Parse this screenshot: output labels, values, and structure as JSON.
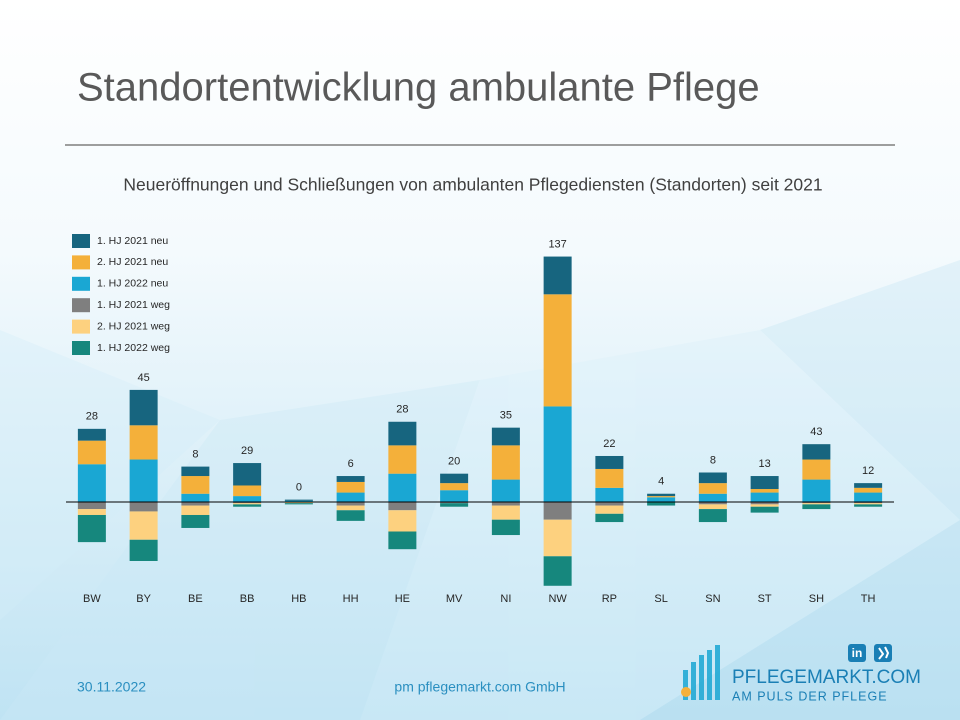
{
  "chart_data": {
    "type": "bar",
    "stacked": true,
    "title": "Standortentwicklung ambulante Pflege",
    "subtitle": "Neueröffnungen  und  Schließungen  von  ambulanten  Pflegediensten  (Standorten)  seit 2021",
    "categories": [
      "BW",
      "BY",
      "BE",
      "BB",
      "HB",
      "HH",
      "HE",
      "MV",
      "NI",
      "NW",
      "RP",
      "SL",
      "SN",
      "ST",
      "SH",
      "TH"
    ],
    "series": [
      {
        "name": "1. HJ 2021 neu",
        "color": "#17657f",
        "values": [
          10,
          30,
          8,
          19,
          1,
          5,
          20,
          8,
          15,
          32,
          11,
          2,
          9,
          11,
          13,
          4
        ]
      },
      {
        "name": "2. HJ 2021 neu",
        "color": "#f4b03a",
        "values": [
          20,
          29,
          15,
          9,
          0,
          9,
          24,
          6,
          29,
          95,
          16,
          1,
          9,
          3,
          17,
          4
        ]
      },
      {
        "name": "1. HJ 2022 neu",
        "color": "#1aa7d3",
        "values": [
          32,
          36,
          7,
          5,
          1,
          8,
          24,
          10,
          19,
          81,
          12,
          4,
          7,
          8,
          19,
          8
        ]
      },
      {
        "name": "1. HJ 2021 weg",
        "color": "#7f7f7f",
        "values": [
          -6,
          -8,
          -3,
          -1,
          0,
          -3,
          -7,
          -1,
          -3,
          -15,
          -3,
          0,
          -2,
          -2,
          -1,
          -1
        ]
      },
      {
        "name": "2. HJ 2021 weg",
        "color": "#fdd17f",
        "values": [
          -5,
          -24,
          -8,
          -1,
          -1,
          -4,
          -18,
          0,
          -12,
          -31,
          -7,
          0,
          -4,
          -2,
          -1,
          -1
        ]
      },
      {
        "name": "1. HJ 2022 weg",
        "color": "#16877d",
        "values": [
          -23,
          -18,
          -11,
          -2,
          -1,
          -9,
          -15,
          -3,
          -13,
          -25,
          -7,
          -3,
          -11,
          -5,
          -4,
          -2
        ]
      }
    ],
    "totals": [
      28,
      45,
      8,
      29,
      0,
      6,
      28,
      20,
      35,
      137,
      22,
      4,
      8,
      13,
      43,
      12
    ],
    "ylim": [
      -75,
      215
    ],
    "legend": "top-left"
  },
  "footer": {
    "date": "30.11.2022",
    "company": "pm pflegemarkt.com GmbH"
  },
  "logo": {
    "name": "PFLEGEMARKT.COM",
    "tagline": "AM PULS DER PFLEGE",
    "linkedin": "in"
  }
}
